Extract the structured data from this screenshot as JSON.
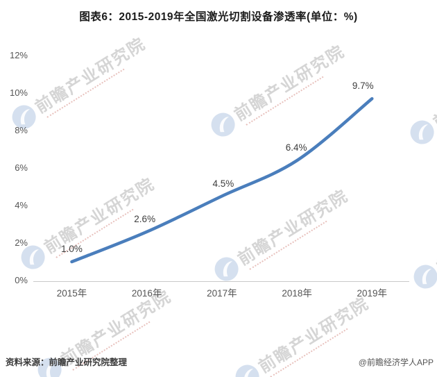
{
  "title": "图表6：2015-2019年全国激光切割设备渗透率(单位：%)",
  "chart_data": {
    "type": "line",
    "categories": [
      "2015年",
      "2016年",
      "2017年",
      "2018年",
      "2019年"
    ],
    "values": [
      1.0,
      2.6,
      4.5,
      6.4,
      9.7
    ],
    "data_labels": [
      "1.0%",
      "2.6%",
      "4.5%",
      "6.4%",
      "9.7%"
    ],
    "y_ticks": [
      "12%",
      "10%",
      "8%",
      "6%",
      "4%",
      "2%",
      "0%"
    ],
    "ylim": [
      0,
      12
    ],
    "xlabel": "",
    "ylabel": "",
    "grid": false,
    "legend": "none",
    "line_color": "#4a7ebc"
  },
  "watermark": {
    "text": "前瞻产业研究院"
  },
  "footer": {
    "source": "资料来源：前瞻产业研究院整理",
    "credit": "@前瞻经济学人APP"
  }
}
